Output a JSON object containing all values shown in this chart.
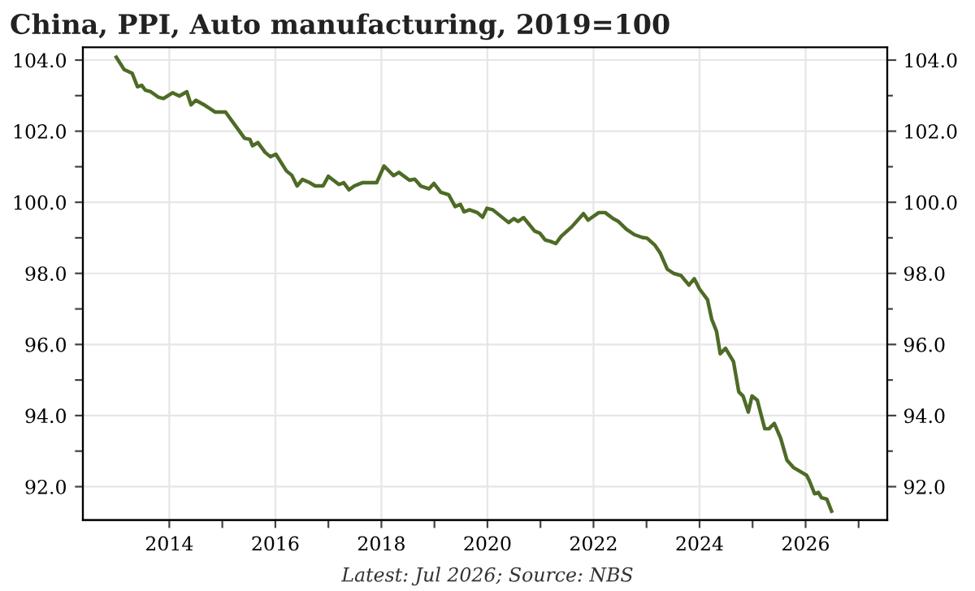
{
  "chart_data": {
    "type": "line",
    "title": "China, PPI, Auto manufacturing, 2019=100",
    "annotations": [
      "Latest: Jul 2026; Source: NBS"
    ],
    "x": [
      2013.0,
      2013.15,
      2013.3,
      2013.4,
      2013.48,
      2013.55,
      2013.65,
      2013.79,
      2013.89,
      2014.06,
      2014.19,
      2014.33,
      2014.41,
      2014.5,
      2014.68,
      2014.86,
      2015.06,
      2015.22,
      2015.42,
      2015.52,
      2015.57,
      2015.67,
      2015.81,
      2015.91,
      2016.01,
      2016.21,
      2016.31,
      2016.41,
      2016.51,
      2016.65,
      2016.75,
      2016.9,
      2017.0,
      2017.2,
      2017.29,
      2017.39,
      2017.49,
      2017.64,
      2017.91,
      2018.05,
      2018.23,
      2018.33,
      2018.53,
      2018.63,
      2018.74,
      2018.9,
      2018.99,
      2019.12,
      2019.27,
      2019.39,
      2019.49,
      2019.56,
      2019.66,
      2019.81,
      2019.91,
      2019.99,
      2020.1,
      2020.4,
      2020.5,
      2020.58,
      2020.68,
      2020.89,
      2020.99,
      2021.09,
      2021.19,
      2021.29,
      2021.39,
      2021.59,
      2021.81,
      2021.9,
      2022.1,
      2022.22,
      2022.37,
      2022.47,
      2022.62,
      2022.77,
      2022.92,
      2023.01,
      2023.16,
      2023.26,
      2023.39,
      2023.51,
      2023.65,
      2023.8,
      2023.9,
      2024.0,
      2024.15,
      2024.23,
      2024.32,
      2024.39,
      2024.49,
      2024.64,
      2024.74,
      2024.82,
      2024.92,
      2024.99,
      2025.09,
      2025.23,
      2025.31,
      2025.41,
      2025.53,
      2025.65,
      2025.77,
      2025.94,
      2026.02,
      2026.07,
      2026.17,
      2026.24,
      2026.3,
      2026.4,
      2026.49
    ],
    "series": [
      {
        "color": "#4d6b26",
        "values": [
          104.08,
          103.73,
          103.63,
          103.25,
          103.29,
          103.15,
          103.11,
          102.96,
          102.92,
          103.08,
          102.99,
          103.11,
          102.74,
          102.87,
          102.72,
          102.54,
          102.54,
          102.21,
          101.8,
          101.77,
          101.59,
          101.68,
          101.4,
          101.28,
          101.35,
          100.88,
          100.76,
          100.46,
          100.64,
          100.55,
          100.46,
          100.46,
          100.73,
          100.5,
          100.55,
          100.35,
          100.46,
          100.55,
          100.55,
          101.02,
          100.75,
          100.84,
          100.62,
          100.65,
          100.46,
          100.38,
          100.53,
          100.28,
          100.21,
          99.88,
          99.94,
          99.73,
          99.79,
          99.71,
          99.58,
          99.83,
          99.79,
          99.43,
          99.54,
          99.46,
          99.57,
          99.19,
          99.13,
          98.94,
          98.9,
          98.84,
          99.04,
          99.31,
          99.68,
          99.5,
          99.71,
          99.71,
          99.54,
          99.46,
          99.24,
          99.09,
          99.01,
          98.99,
          98.79,
          98.57,
          98.12,
          98.0,
          97.94,
          97.67,
          97.85,
          97.56,
          97.26,
          96.71,
          96.37,
          95.74,
          95.89,
          95.52,
          94.67,
          94.55,
          94.1,
          94.55,
          94.43,
          93.63,
          93.63,
          93.78,
          93.36,
          92.74,
          92.54,
          92.39,
          92.32,
          92.17,
          91.8,
          91.84,
          91.69,
          91.65,
          91.31
        ]
      }
    ],
    "xlim": [
      2012.37,
      2027.54
    ],
    "xticks": [
      2014,
      {
        "value": 2015,
        "label": null
      },
      2016,
      {
        "value": 2017,
        "label": null
      },
      2018,
      {
        "value": 2019,
        "label": null
      },
      2020,
      {
        "value": 2021,
        "label": null
      },
      2022,
      {
        "value": 2023,
        "label": null
      },
      2024,
      {
        "value": 2025,
        "label": null
      },
      2026,
      {
        "value": 2027,
        "label": null
      }
    ],
    "ylim": [
      91.06,
      104.36
    ],
    "yticks": [
      {
        "value": 92,
        "label": "92.0"
      },
      {
        "value": 93,
        "label": null
      },
      {
        "value": 94,
        "label": "94.0"
      },
      {
        "value": 95,
        "label": null
      },
      {
        "value": 96,
        "label": "96.0"
      },
      {
        "value": 97,
        "label": null
      },
      {
        "value": 98,
        "label": "98.0"
      },
      {
        "value": 99,
        "label": null
      },
      {
        "value": 100,
        "label": "100.0"
      },
      {
        "value": 101,
        "label": null
      },
      {
        "value": 102,
        "label": "102.0"
      },
      {
        "value": 103,
        "label": null
      },
      {
        "value": 104,
        "label": "104.0"
      }
    ],
    "y2lim": [
      91.06,
      104.36
    ],
    "y2ticks": [
      {
        "value": 92,
        "label": "92.0"
      },
      {
        "value": 93,
        "label": null
      },
      {
        "value": 94,
        "label": "94.0"
      },
      {
        "value": 95,
        "label": null
      },
      {
        "value": 96,
        "label": "96.0"
      },
      {
        "value": 97,
        "label": null
      },
      {
        "value": 98,
        "label": "98.0"
      },
      {
        "value": 99,
        "label": null
      },
      {
        "value": 100,
        "label": "100.0"
      },
      {
        "value": 101,
        "label": null
      },
      {
        "value": 102,
        "label": "102.0"
      },
      {
        "value": 103,
        "label": null
      },
      {
        "value": 104,
        "label": "104.0"
      }
    ],
    "grid": true,
    "marker": "none",
    "line_style": "solid"
  }
}
